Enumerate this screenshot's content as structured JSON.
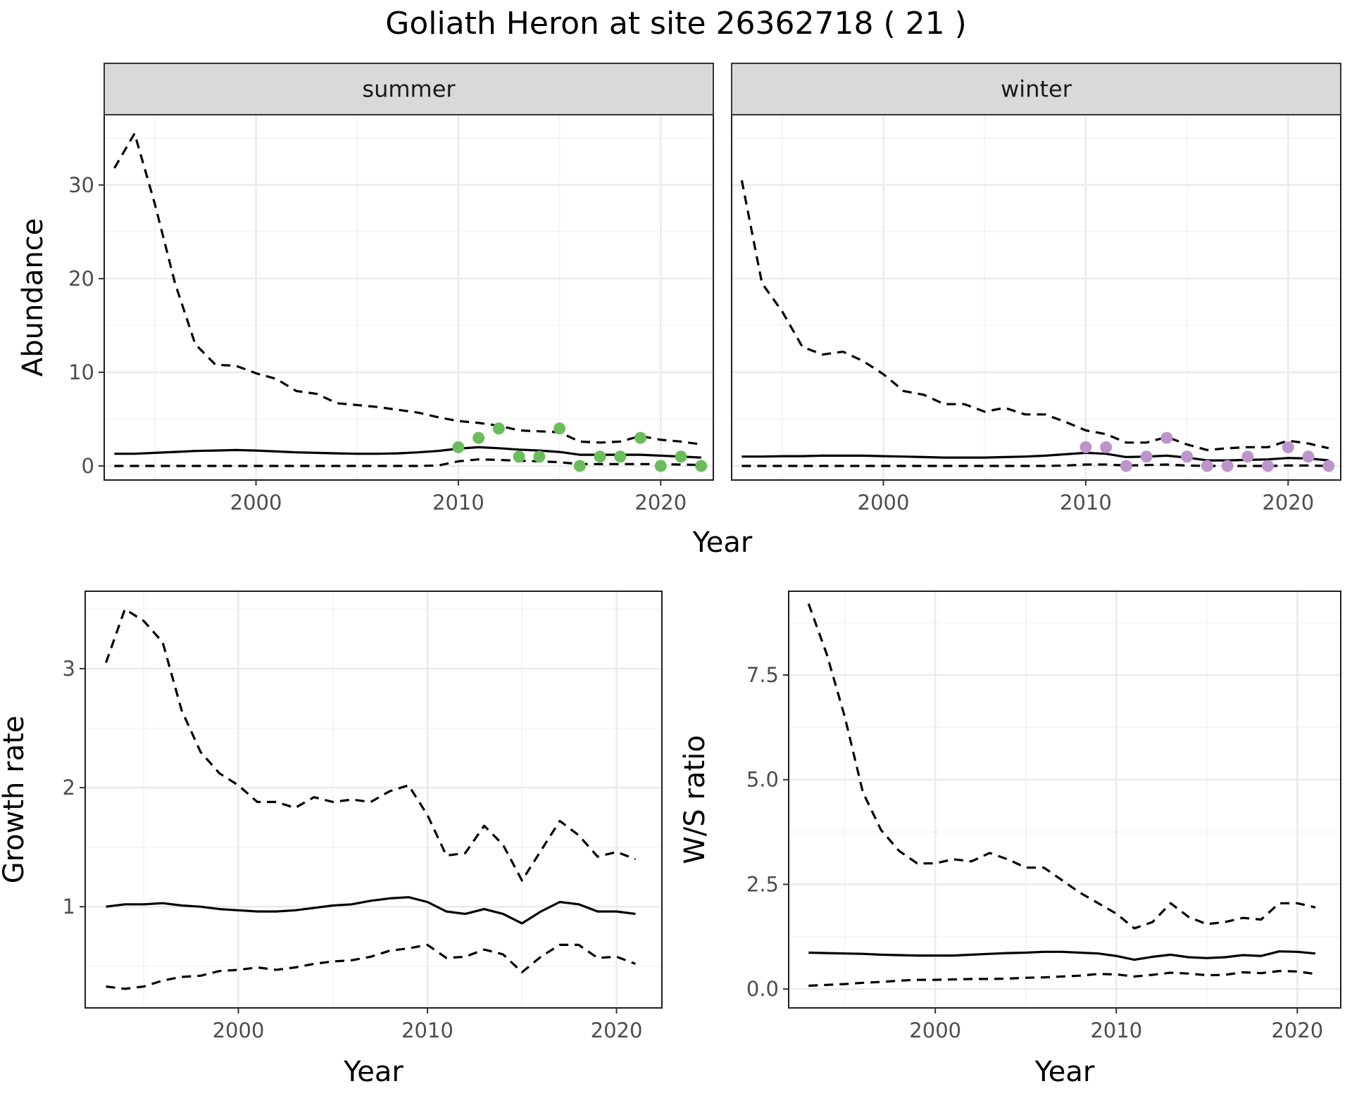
{
  "title": "Goliath Heron at site 26362718 ( 21 )",
  "colors": {
    "summer_points": "#6abd5b",
    "winter_points": "#be93cb",
    "lines": "#000000",
    "strip_background": "#d9d9d9",
    "grid": "#ebebeb"
  },
  "chart_data": [
    {
      "type": "line",
      "id": "abundance-summer",
      "strip_label": "summer",
      "ylabel": "Abundance",
      "xlabel": "Year",
      "xlim": [
        1992.5,
        2022.6
      ],
      "ylim": [
        -1.5,
        37.5
      ],
      "x_ticks": [
        2000,
        2010,
        2020
      ],
      "y_ticks": [
        0,
        10,
        20,
        30
      ],
      "x": [
        1993,
        1994,
        1995,
        1996,
        1997,
        1998,
        1999,
        2000,
        2001,
        2002,
        2003,
        2004,
        2005,
        2006,
        2007,
        2008,
        2009,
        2010,
        2011,
        2012,
        2013,
        2014,
        2015,
        2016,
        2017,
        2018,
        2019,
        2020,
        2021,
        2022
      ],
      "series": [
        {
          "style": "solid",
          "values": [
            1.3,
            1.3,
            1.4,
            1.5,
            1.6,
            1.65,
            1.7,
            1.65,
            1.55,
            1.45,
            1.4,
            1.35,
            1.3,
            1.3,
            1.35,
            1.45,
            1.6,
            1.85,
            2.0,
            1.9,
            1.75,
            1.65,
            1.5,
            1.2,
            1.2,
            1.2,
            1.2,
            1.1,
            1.0,
            0.9
          ]
        },
        {
          "style": "dashed",
          "values": [
            31.8,
            35.5,
            28.0,
            19.5,
            13.0,
            10.8,
            10.7,
            9.9,
            9.3,
            8.0,
            7.7,
            6.7,
            6.5,
            6.3,
            6.0,
            5.7,
            5.2,
            4.8,
            4.6,
            4.3,
            3.8,
            3.7,
            3.6,
            2.6,
            2.5,
            2.6,
            3.2,
            2.8,
            2.6,
            2.3
          ]
        },
        {
          "style": "dashed",
          "values": [
            0.0,
            0.0,
            0.0,
            0.0,
            0.0,
            0.0,
            0.0,
            0.0,
            0.0,
            0.0,
            0.0,
            0.0,
            0.0,
            0.0,
            0.0,
            0.0,
            0.05,
            0.5,
            0.7,
            0.65,
            0.55,
            0.5,
            0.4,
            0.2,
            0.2,
            0.2,
            0.2,
            0.2,
            0.15,
            0.1
          ]
        }
      ],
      "points": {
        "color": "#6abd5b",
        "x": [
          2010,
          2011,
          2012,
          2013,
          2014,
          2015,
          2016,
          2017,
          2018,
          2019,
          2020,
          2021,
          2022
        ],
        "y": [
          2,
          3,
          4,
          1,
          1,
          4,
          0,
          1,
          1,
          3,
          0,
          1,
          0
        ]
      }
    },
    {
      "type": "line",
      "id": "abundance-winter",
      "strip_label": "winter",
      "ylabel": "",
      "xlabel": "Year",
      "xlim": [
        1992.5,
        2022.6
      ],
      "ylim": [
        -1.5,
        37.5
      ],
      "x_ticks": [
        2000,
        2010,
        2020
      ],
      "y_ticks": [
        0,
        10,
        20,
        30
      ],
      "x": [
        1993,
        1994,
        1995,
        1996,
        1997,
        1998,
        1999,
        2000,
        2001,
        2002,
        2003,
        2004,
        2005,
        2006,
        2007,
        2008,
        2009,
        2010,
        2011,
        2012,
        2013,
        2014,
        2015,
        2016,
        2017,
        2018,
        2019,
        2020,
        2021,
        2022
      ],
      "series": [
        {
          "style": "solid",
          "values": [
            1.0,
            1.0,
            1.05,
            1.05,
            1.1,
            1.1,
            1.1,
            1.05,
            1.0,
            0.95,
            0.9,
            0.9,
            0.9,
            0.95,
            1.0,
            1.1,
            1.25,
            1.4,
            1.3,
            0.95,
            1.0,
            1.1,
            0.9,
            0.6,
            0.6,
            0.65,
            0.7,
            0.85,
            0.8,
            0.6
          ]
        },
        {
          "style": "dashed",
          "values": [
            30.5,
            19.5,
            16.5,
            12.7,
            11.9,
            12.2,
            11.2,
            9.8,
            8.0,
            7.6,
            6.6,
            6.6,
            5.8,
            6.2,
            5.5,
            5.5,
            4.7,
            3.8,
            3.4,
            2.5,
            2.5,
            3.1,
            2.3,
            1.7,
            1.9,
            2.0,
            2.0,
            2.7,
            2.4,
            1.9
          ]
        },
        {
          "style": "dashed",
          "values": [
            0.0,
            0.0,
            0.0,
            0.0,
            0.0,
            0.0,
            0.0,
            0.0,
            0.0,
            0.0,
            0.0,
            0.0,
            0.0,
            0.0,
            0.0,
            0.0,
            0.05,
            0.15,
            0.15,
            0.05,
            0.1,
            0.15,
            0.05,
            0.0,
            0.0,
            0.0,
            0.0,
            0.05,
            0.05,
            0.0
          ]
        }
      ],
      "points": {
        "color": "#be93cb",
        "x": [
          2010,
          2011,
          2012,
          2013,
          2014,
          2015,
          2016,
          2017,
          2018,
          2019,
          2020,
          2021,
          2022
        ],
        "y": [
          2,
          2,
          0,
          1,
          3,
          1,
          0,
          0,
          1,
          0,
          2,
          1,
          0
        ]
      }
    },
    {
      "type": "line",
      "id": "growth-rate",
      "ylabel": "Growth rate",
      "xlabel": "Year",
      "xlim": [
        1991.9,
        2022.4
      ],
      "ylim": [
        0.15,
        3.65
      ],
      "x_ticks": [
        2000,
        2010,
        2020
      ],
      "y_ticks": [
        1,
        2,
        3
      ],
      "x": [
        1993,
        1994,
        1995,
        1996,
        1997,
        1998,
        1999,
        2000,
        2001,
        2002,
        2003,
        2004,
        2005,
        2006,
        2007,
        2008,
        2009,
        2010,
        2011,
        2012,
        2013,
        2014,
        2015,
        2016,
        2017,
        2018,
        2019,
        2020,
        2021
      ],
      "series": [
        {
          "style": "solid",
          "values": [
            1.0,
            1.02,
            1.02,
            1.03,
            1.01,
            1.0,
            0.98,
            0.97,
            0.96,
            0.96,
            0.97,
            0.99,
            1.01,
            1.02,
            1.05,
            1.07,
            1.08,
            1.04,
            0.96,
            0.94,
            0.98,
            0.94,
            0.86,
            0.96,
            1.04,
            1.02,
            0.96,
            0.96,
            0.94
          ]
        },
        {
          "style": "dashed",
          "values": [
            3.05,
            3.5,
            3.4,
            3.22,
            2.65,
            2.3,
            2.12,
            2.02,
            1.88,
            1.88,
            1.83,
            1.92,
            1.88,
            1.9,
            1.88,
            1.97,
            2.02,
            1.77,
            1.43,
            1.45,
            1.68,
            1.52,
            1.22,
            1.47,
            1.72,
            1.6,
            1.42,
            1.46,
            1.4
          ]
        },
        {
          "style": "dashed",
          "values": [
            0.33,
            0.31,
            0.33,
            0.38,
            0.41,
            0.42,
            0.46,
            0.47,
            0.49,
            0.47,
            0.49,
            0.52,
            0.54,
            0.55,
            0.58,
            0.63,
            0.65,
            0.68,
            0.57,
            0.58,
            0.64,
            0.6,
            0.45,
            0.58,
            0.68,
            0.68,
            0.57,
            0.58,
            0.52
          ]
        }
      ]
    },
    {
      "type": "line",
      "id": "ws-ratio",
      "ylabel": "W/S ratio",
      "xlabel": "Year",
      "xlim": [
        1991.9,
        2022.4
      ],
      "ylim": [
        -0.45,
        9.5
      ],
      "x_ticks": [
        2000,
        2010,
        2020
      ],
      "y_ticks": [
        0.0,
        2.5,
        5.0,
        7.5
      ],
      "y_tick_labels": [
        "0.0",
        "2.5",
        "5.0",
        "7.5"
      ],
      "x": [
        1993,
        1994,
        1995,
        1996,
        1997,
        1998,
        1999,
        2000,
        2001,
        2002,
        2003,
        2004,
        2005,
        2006,
        2007,
        2008,
        2009,
        2010,
        2011,
        2012,
        2013,
        2014,
        2015,
        2016,
        2017,
        2018,
        2019,
        2020,
        2021
      ],
      "series": [
        {
          "style": "solid",
          "values": [
            0.87,
            0.86,
            0.85,
            0.84,
            0.82,
            0.81,
            0.8,
            0.8,
            0.8,
            0.82,
            0.84,
            0.86,
            0.87,
            0.89,
            0.89,
            0.87,
            0.85,
            0.79,
            0.7,
            0.77,
            0.82,
            0.76,
            0.74,
            0.76,
            0.81,
            0.79,
            0.9,
            0.89,
            0.85
          ]
        },
        {
          "style": "dashed",
          "values": [
            9.2,
            8.0,
            6.5,
            4.7,
            3.8,
            3.3,
            3.0,
            3.0,
            3.1,
            3.05,
            3.25,
            3.1,
            2.9,
            2.9,
            2.6,
            2.3,
            2.05,
            1.8,
            1.45,
            1.6,
            2.05,
            1.72,
            1.55,
            1.6,
            1.7,
            1.66,
            2.05,
            2.05,
            1.95
          ]
        },
        {
          "style": "dashed",
          "values": [
            0.08,
            0.1,
            0.12,
            0.15,
            0.17,
            0.2,
            0.22,
            0.22,
            0.23,
            0.24,
            0.24,
            0.25,
            0.27,
            0.28,
            0.3,
            0.32,
            0.36,
            0.35,
            0.3,
            0.34,
            0.39,
            0.37,
            0.33,
            0.34,
            0.4,
            0.38,
            0.43,
            0.42,
            0.36
          ]
        }
      ]
    }
  ]
}
